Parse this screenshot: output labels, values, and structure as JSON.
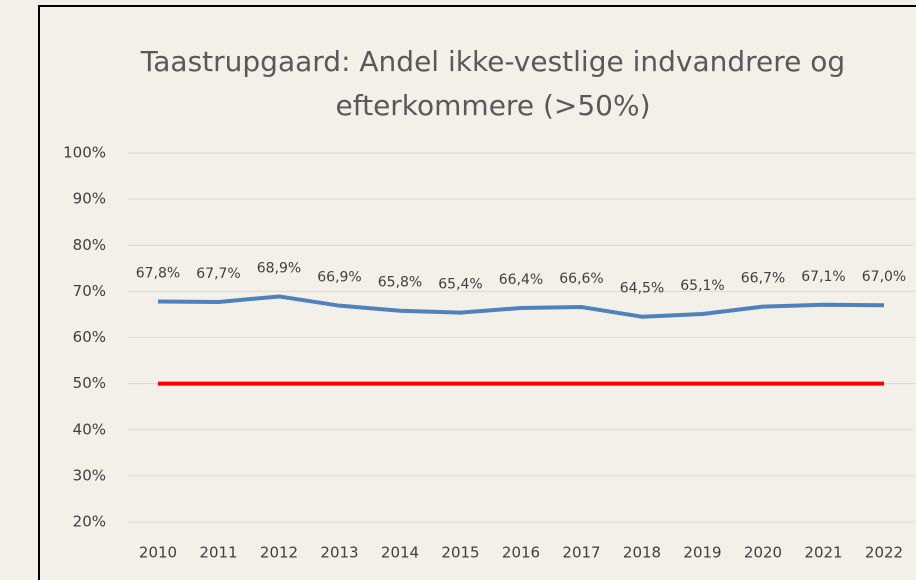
{
  "chart_data": {
    "type": "line",
    "title": "Taastrupgaard: Andel ikke-vestlige indvandrere og efterkommere (>50%)",
    "categories": [
      "2010",
      "2011",
      "2012",
      "2013",
      "2014",
      "2015",
      "2016",
      "2017",
      "2018",
      "2019",
      "2020",
      "2021",
      "2022"
    ],
    "series": [
      {
        "color": "#4f81bd",
        "values": [
          67.8,
          67.7,
          68.9,
          66.9,
          65.8,
          65.4,
          66.4,
          66.6,
          64.5,
          65.1,
          66.7,
          67.1,
          67.0
        ],
        "value_labels": [
          "67,8%",
          "67,7%",
          "68,9%",
          "66,9%",
          "65,8%",
          "65,4%",
          "66,4%",
          "66,6%",
          "64,5%",
          "65,1%",
          "66,7%",
          "67,1%",
          "67,0%"
        ]
      },
      {
        "color": "#ff0000",
        "values": [
          50,
          50,
          50,
          50,
          50,
          50,
          50,
          50,
          50,
          50,
          50,
          50,
          50
        ]
      }
    ],
    "ylim": [
      20,
      100
    ],
    "yticks": [
      {
        "value": 20,
        "label": "20%"
      },
      {
        "value": 30,
        "label": "30%"
      },
      {
        "value": 40,
        "label": "40%"
      },
      {
        "value": 50,
        "label": "50%"
      },
      {
        "value": 60,
        "label": "60%"
      },
      {
        "value": 70,
        "label": "70%"
      },
      {
        "value": 80,
        "label": "80%"
      },
      {
        "value": 90,
        "label": "90%"
      },
      {
        "value": 100,
        "label": "100%"
      }
    ],
    "grid": true
  }
}
